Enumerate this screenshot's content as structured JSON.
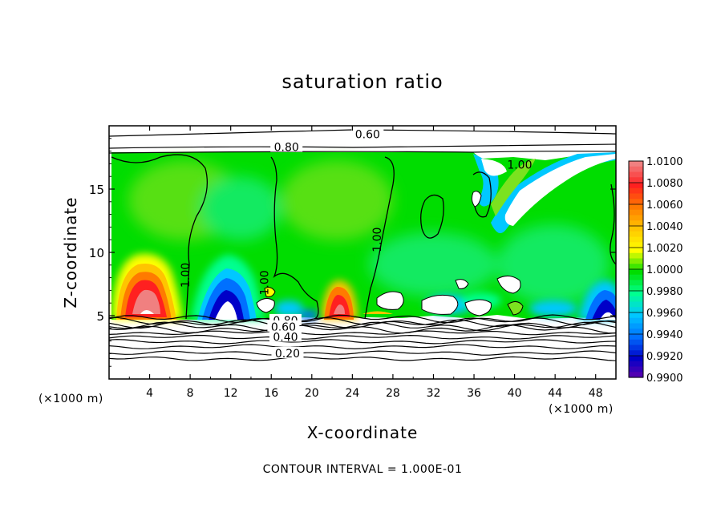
{
  "chart_data": {
    "type": "heatmap",
    "title": "saturation ratio",
    "xlabel": "X-coordinate",
    "ylabel": "Z-coordinate",
    "x_unit": "(×1000 m)",
    "footnote": "CONTOUR INTERVAL = 1.000E-01",
    "xlim": [
      0,
      50
    ],
    "ylim": [
      0,
      20
    ],
    "x_ticks": [
      4,
      8,
      12,
      16,
      20,
      24,
      28,
      32,
      36,
      40,
      44,
      48
    ],
    "y_ticks": [
      5,
      10,
      15
    ],
    "colorbar": {
      "levels": [
        1.01,
        1.008,
        1.006,
        1.004,
        1.002,
        1.0,
        0.998,
        0.996,
        0.994,
        0.992,
        0.99
      ],
      "labels": [
        "1.0100",
        "1.0080",
        "1.0060",
        "1.0040",
        "1.0020",
        "1.0000",
        "0.9980",
        "0.9960",
        "0.9940",
        "0.9920",
        "0.9900"
      ],
      "colors": [
        "#f08080",
        "#ff2020",
        "#ff7a00",
        "#ffc400",
        "#ffff00",
        "#00dd00",
        "#00ff90",
        "#00c8ff",
        "#0070ff",
        "#0000c8",
        "#6a00aa"
      ]
    },
    "contour_labels": [
      {
        "text": "0.60",
        "x": 25.5,
        "z": 19.2
      },
      {
        "text": "0.80",
        "x": 17.5,
        "z": 18.2
      },
      {
        "text": "1.00",
        "x": 40.5,
        "z": 16.8
      },
      {
        "text": "1.00",
        "x": 26.5,
        "z": 11.0
      },
      {
        "text": "1.00",
        "x": 7.6,
        "z": 8.2
      },
      {
        "text": "1.00",
        "x": 15.4,
        "z": 7.6
      },
      {
        "text": "0.80",
        "x": 17.4,
        "z": 4.5
      },
      {
        "text": "0.60",
        "x": 17.2,
        "z": 4.0
      },
      {
        "text": "0.40",
        "x": 17.4,
        "z": 3.2
      },
      {
        "text": "0.20",
        "x": 17.6,
        "z": 1.9
      }
    ],
    "maxima": [
      {
        "x": 3.8,
        "z": 8.0,
        "value": 1.01
      },
      {
        "x": 22.6,
        "z": 6.8,
        "value": 1.008
      }
    ],
    "minima": [
      {
        "x": 11.3,
        "z": 6.0,
        "value": 0.992
      },
      {
        "x": 48.0,
        "z": 5.6,
        "value": 0.994
      }
    ]
  }
}
